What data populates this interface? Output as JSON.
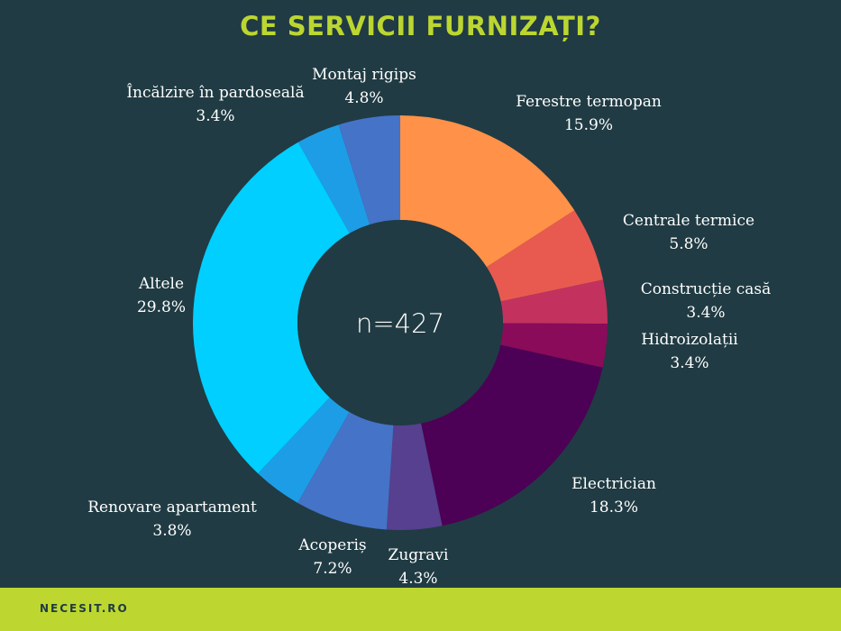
{
  "title": "CE SERVICII FURNIZAȚI?",
  "footer": {
    "brand": "NECESIT.RO"
  },
  "chart_data": {
    "type": "pie",
    "variant": "donut",
    "title": "CE SERVICII FURNIZAȚI?",
    "center_label": "n=427",
    "slices": [
      {
        "label": "Ferestre termopan",
        "value": 15.9,
        "display": "15.9%",
        "color": "#ff9148"
      },
      {
        "label": "Centrale termice",
        "value": 5.8,
        "display": "5.8%",
        "color": "#e85a50"
      },
      {
        "label": "Construcție casă",
        "value": 3.4,
        "display": "3.4%",
        "color": "#c3325e"
      },
      {
        "label": "Hidroizolații",
        "value": 3.4,
        "display": "3.4%",
        "color": "#8a0b59"
      },
      {
        "label": "Electrician",
        "value": 18.3,
        "display": "18.3%",
        "color": "#4c0056"
      },
      {
        "label": "Zugravi",
        "value": 4.3,
        "display": "4.3%",
        "color": "#56408f"
      },
      {
        "label": "Acoperiș",
        "value": 7.2,
        "display": "7.2%",
        "color": "#4473c8"
      },
      {
        "label": "Renovare apartament",
        "value": 3.8,
        "display": "3.8%",
        "color": "#1e9de7"
      },
      {
        "label": "Altele",
        "value": 29.8,
        "display": "29.8%",
        "color": "#00cfff"
      },
      {
        "label": "Încălzire în pardoseală",
        "value": 3.4,
        "display": "3.4%",
        "color": "#1e9de7"
      },
      {
        "label": "Montaj rigips",
        "value": 4.8,
        "display": "4.8%",
        "color": "#4473c8"
      }
    ]
  }
}
